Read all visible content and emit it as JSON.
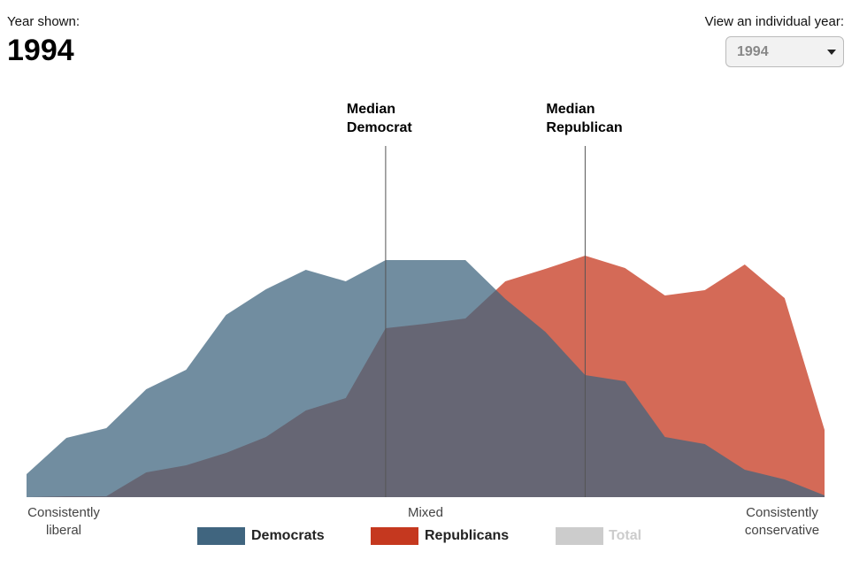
{
  "header": {
    "year_label": "Year shown:",
    "year": "1994",
    "select_label": "View an individual year:",
    "select_value": "1994"
  },
  "chart_data": {
    "type": "area",
    "x": [
      0,
      1,
      2,
      3,
      4,
      5,
      6,
      7,
      8,
      9,
      10,
      11,
      12,
      13,
      14,
      15,
      16,
      17,
      18,
      19,
      20
    ],
    "xlim": [
      0,
      20
    ],
    "xticks": [
      {
        "value": 0,
        "label": "Consistently liberal"
      },
      {
        "value": 10,
        "label": "Mixed"
      },
      {
        "value": 20,
        "label": "Consistently conservative"
      }
    ],
    "ylim": [
      0,
      300
    ],
    "series": [
      {
        "name": "Republicans",
        "color": "#c5381f",
        "values": [
          0,
          1,
          1,
          28,
          36,
          50,
          68,
          98,
          112,
          191,
          196,
          202,
          244,
          258,
          273,
          259,
          228,
          234,
          263,
          225,
          76
        ]
      },
      {
        "name": "Democrats",
        "color": "#40657f",
        "values": [
          26,
          67,
          78,
          122,
          144,
          206,
          235,
          257,
          244,
          268,
          268,
          268,
          224,
          187,
          138,
          131,
          68,
          60,
          31,
          20,
          2
        ]
      }
    ],
    "legend_order": [
      1,
      0
    ],
    "inactive_legend": {
      "name": "Total",
      "color": "#cccccc"
    },
    "medians": [
      {
        "lines": [
          "Median",
          "Democrat"
        ],
        "x": 9
      },
      {
        "lines": [
          "Median",
          "Republican"
        ],
        "x": 14
      }
    ]
  }
}
